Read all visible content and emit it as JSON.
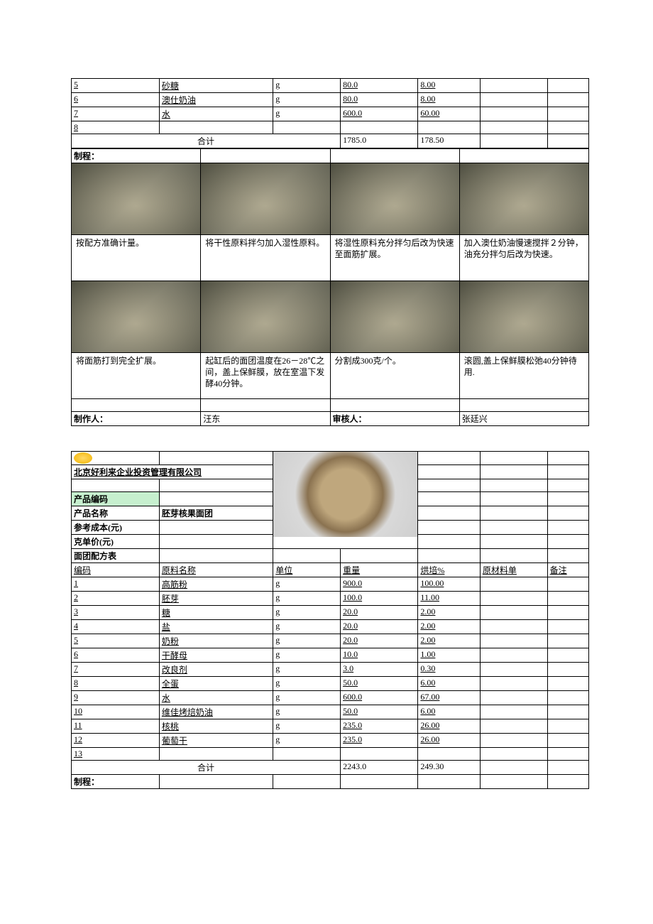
{
  "top_table": {
    "rows": [
      {
        "code": "5",
        "name": "砂糖",
        "unit": "g",
        "weight": "80.0",
        "pct": "8.00"
      },
      {
        "code": "6",
        "name": "澳仕奶油",
        "unit": "g",
        "weight": "80.0",
        "pct": "8.00"
      },
      {
        "code": "7",
        "name": "水",
        "unit": "g",
        "weight": "600.0",
        "pct": "60.00"
      },
      {
        "code": "8",
        "name": "",
        "unit": "",
        "weight": "",
        "pct": ""
      }
    ],
    "total_label": "合计",
    "total_weight": "1785.0",
    "total_pct": "178.50"
  },
  "process1": {
    "title": "制程：",
    "steps": [
      {
        "text": "按配方准确计量。"
      },
      {
        "text": "将干性原料拌匀加入湿性原料。"
      },
      {
        "text": "将湿性原料充分拌匀后改为快速至面筋扩展。"
      },
      {
        "text": "加入澳仕奶油慢速搅拌２分钟，油充分拌匀后改为快速。"
      },
      {
        "text": "将面筋打到完全扩展。"
      },
      {
        "text": "起缸后的面团温度在26－28℃之间，盖上保鲜膜，放在室温下发酵40分钟。"
      },
      {
        "text": "分割成300克/个。"
      },
      {
        "text": "滚圆,盖上保鲜膜松弛40分钟待用."
      }
    ],
    "maker_label": "制作人：",
    "maker": "汪东",
    "reviewer_label": "审核人：",
    "reviewer": "张廷兴"
  },
  "sheet2": {
    "company": "北京好利来企业投资管理有限公司",
    "labels": {
      "product_code": "产品编码",
      "product_name": "产品名称",
      "ref_cost": "参考成本(元)",
      "unit_price": "克单价(元)",
      "recipe_title": "面团配方表",
      "code": "编码",
      "name": "原料名称",
      "unit": "单位",
      "weight": "重量",
      "pct": "烘培%",
      "matcost": "原材料单",
      "note": "备注",
      "total": "合计",
      "process": "制程："
    },
    "product_name_val": "胚芽核果面团",
    "rows": [
      {
        "code": "1",
        "name": "高筋粉",
        "unit": "g",
        "weight": "900.0",
        "pct": "100.00"
      },
      {
        "code": "2",
        "name": "胚芽",
        "unit": "g",
        "weight": "100.0",
        "pct": "11.00"
      },
      {
        "code": "3",
        "name": "糖",
        "unit": "g",
        "weight": "20.0",
        "pct": "2.00"
      },
      {
        "code": "4",
        "name": "盐",
        "unit": "g",
        "weight": "20.0",
        "pct": "2.00"
      },
      {
        "code": "5",
        "name": "奶粉",
        "unit": "g",
        "weight": "20.0",
        "pct": "2.00"
      },
      {
        "code": "6",
        "name": "干酵母",
        "unit": "g",
        "weight": "10.0",
        "pct": "1.00"
      },
      {
        "code": "7",
        "name": "改良剂",
        "unit": "g",
        "weight": "3.0",
        "pct": "0.30"
      },
      {
        "code": "8",
        "name": "全蛋",
        "unit": "g",
        "weight": "50.0",
        "pct": "6.00"
      },
      {
        "code": "9",
        "name": "水",
        "unit": "g",
        "weight": "600.0",
        "pct": "67.00"
      },
      {
        "code": "10",
        "name": "维佳烤焙奶油",
        "unit": "g",
        "weight": "50.0",
        "pct": "6.00"
      },
      {
        "code": "11",
        "name": "核桃",
        "unit": "g",
        "weight": "235.0",
        "pct": "26.00"
      },
      {
        "code": "12",
        "name": "葡萄干",
        "unit": "g",
        "weight": "235.0",
        "pct": "26.00"
      },
      {
        "code": "13",
        "name": "",
        "unit": "",
        "weight": "",
        "pct": ""
      }
    ],
    "total_weight": "2243.0",
    "total_pct": "249.30"
  }
}
